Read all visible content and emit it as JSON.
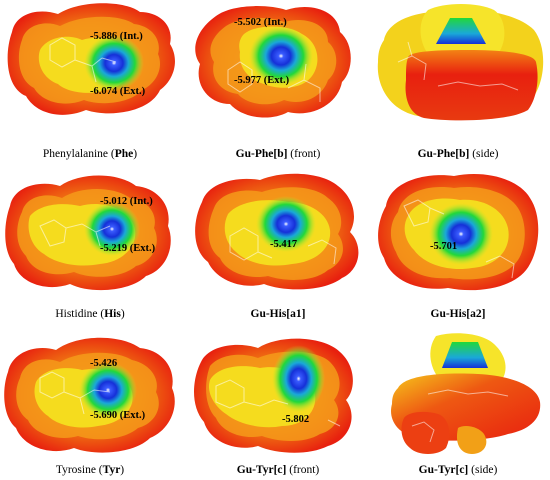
{
  "panels": [
    {
      "id": "phe",
      "values": [
        "-5.886 (Int.)",
        "-6.074 (Ext.)"
      ],
      "caption": {
        "plain": "Phenylalanine (",
        "bold": "Phe",
        "tail": ")"
      }
    },
    {
      "id": "gu-phe-b-front",
      "values": [
        "-5.502 (Int.)",
        "-5.977 (Ext.)"
      ],
      "caption": {
        "plain": "",
        "bold": "Gu-Phe[b]",
        "tail": " (front)"
      }
    },
    {
      "id": "gu-phe-b-side",
      "values": [],
      "caption": {
        "plain": "",
        "bold": "Gu-Phe[b]",
        "tail": " (side)"
      }
    },
    {
      "id": "his",
      "values": [
        "-5.012 (Int.)",
        "-5.219 (Ext.)"
      ],
      "caption": {
        "plain": "Histidine (",
        "bold": "His",
        "tail": ")"
      }
    },
    {
      "id": "gu-his-a1",
      "values": [
        "-5.417"
      ],
      "caption": {
        "plain": "",
        "bold": "Gu-His[a1]",
        "tail": ""
      }
    },
    {
      "id": "gu-his-a2",
      "values": [
        "-5.701"
      ],
      "caption": {
        "plain": "",
        "bold": "Gu-His[a2]",
        "tail": ""
      }
    },
    {
      "id": "tyr",
      "values": [
        "-5.426",
        "-5.690 (Ext.)"
      ],
      "caption": {
        "plain": "Tyrosine (",
        "bold": "Tyr",
        "tail": ")"
      }
    },
    {
      "id": "gu-tyr-c-front",
      "values": [
        "-5.802"
      ],
      "caption": {
        "plain": "",
        "bold": "Gu-Tyr[c]",
        "tail": " (front)"
      }
    },
    {
      "id": "gu-tyr-c-side",
      "values": [],
      "caption": {
        "plain": "",
        "bold": "Gu-Tyr[c]",
        "tail": " (side)"
      }
    }
  ],
  "colors": {
    "red": "#e8200f",
    "orange": "#f07a12",
    "yellow": "#f2e81c",
    "green": "#22d83a",
    "blue": "#1530d8",
    "bond": "#ffffff"
  }
}
